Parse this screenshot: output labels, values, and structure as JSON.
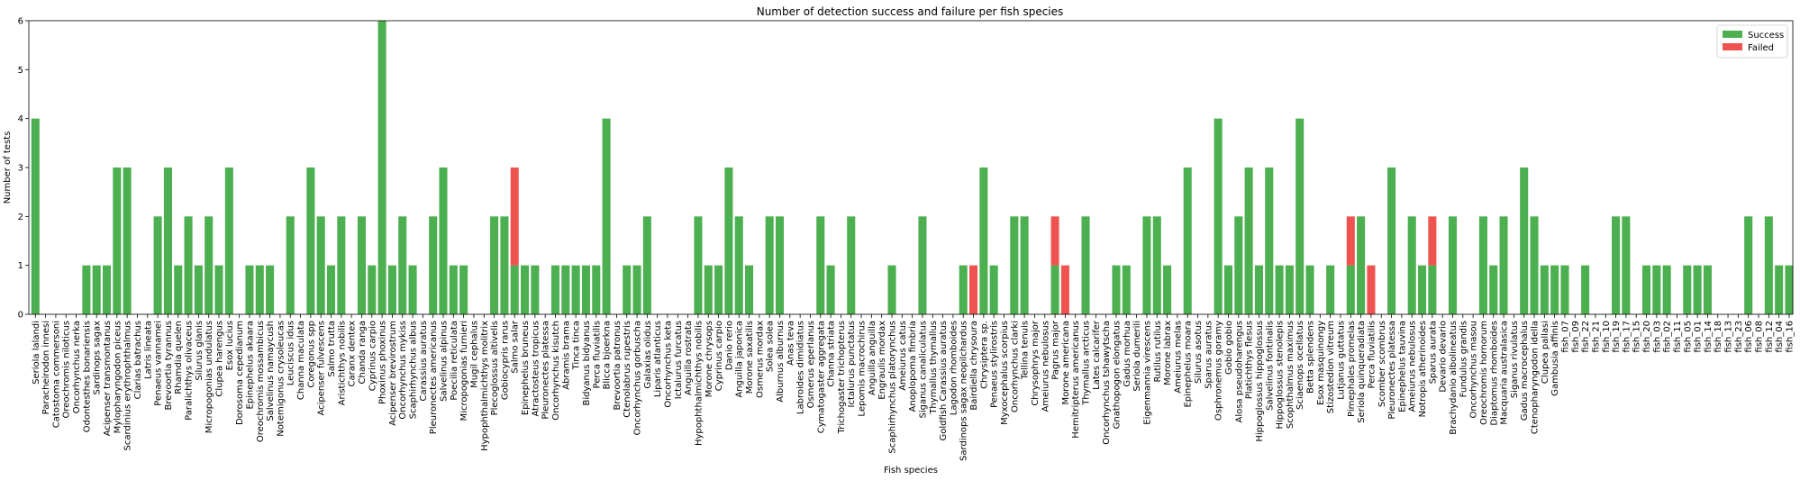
{
  "chart_data": {
    "type": "bar",
    "stacked": true,
    "title": "Number of detection success and failure per fish species",
    "xlabel": "Fish species",
    "ylabel": "Number of tests",
    "ylim": [
      0,
      6
    ],
    "yticks": [
      0,
      1,
      2,
      3,
      4,
      5,
      6
    ],
    "legend_position": "top-right",
    "categories": [
      "Seriola lalandi",
      "Paracheirodon innesi",
      "Catostoma commersoni",
      "Oreochromis niloticus",
      "Oncorhynchus nerka",
      "Odontesthes bonariensis",
      "Sardinops sagax",
      "Acipenser transmontanus",
      "Mylopharyngodon piceus",
      "Scardinius erythrophthalmus",
      "Clarias batrachus",
      "Latris lineata",
      "Penaeus vannamei",
      "Brevoortia tyrannus",
      "Rhamdia quelen",
      "Paralichthys olivaceus",
      "Silurus glanis",
      "Micropogonias undulatus",
      "Clupea harengus",
      "Esox lucius",
      "Dorosoma cepedianum",
      "Epinephelus akaara",
      "Oreochromis mossambicus",
      "Salvelinus namaycush",
      "Notemigonus crysoleucas",
      "Leuciscus idus",
      "Channa maculata",
      "Coregonus spp",
      "Acipenser fulvescens",
      "Salmo trutta",
      "Aristichthys nobilis",
      "Caranx dentex",
      "Chanda ranga",
      "Cyprinus carpio",
      "Phoxinus phoxinus",
      "Acipenser brevirostrum",
      "Oncorhynchus mykiss",
      "Scaphirhynchus albus",
      "Carassius auratus",
      "Pleuronectes americanus",
      "Salvelinus alpinus",
      "Poecilia reticulata",
      "Micropogonias furnieri",
      "Mugil cephalus",
      "Hypophthalmichthys molitrix",
      "Plecoglossus altivelis",
      "Gobiocypris rarus",
      "Salmo salar",
      "Epinephelus bruneus",
      "Atractosteus tropicus",
      "Pleuronectes platessa",
      "Oncorhynchus kisutch",
      "Abramis brama",
      "Tinca tinca",
      "Bidyanus bidyanus",
      "Perca fluviatilis",
      "Blicca bjoerkna",
      "Brevoortia patronus",
      "Ctenolabrus rupestris",
      "Oncorhynchus gorbuscha",
      "Galaxias olidus",
      "Liparis atlanticus",
      "Oncorhynchus keta",
      "Ictalurus furcatus",
      "Anguilla rostrata",
      "Hypophthalmichthys nobilis",
      "Morone chrysops",
      "Cyprinus carpio",
      "Danio rerio",
      "Anguilla japonica",
      "Morone saxatilis",
      "Osmerus mordax",
      "Solea solea",
      "Alburnus alburnus",
      "Anas teva",
      "Labroides dimidiatus",
      "Osmerus eperlanus",
      "Cymatogaster aggregata",
      "Channa striata",
      "Trichogaster trichopterus",
      "Ictalurus punctatus",
      "Lepomis macrochirus",
      "Anguilla anguilla",
      "Engraulis mordax",
      "Scaphirhynchus platorynchus",
      "Ameiurus catus",
      "Anoplopoma fimbria",
      "Siganus canaliculatus",
      "Thymallus thymallus",
      "Goldfish Carassius auratus",
      "Lagodon rhomboides",
      "Sardinops sagax neopilchardus",
      "Bairdiella chrysoura",
      "Chrysiptera sp.",
      "Penaeus stylirostris",
      "Myxocephalus scorpius",
      "Oncorhynchus clarki",
      "Tellina tenuis",
      "Chrysophrys major",
      "Ameiurus nebulosus",
      "Pagrus major",
      "Morone americana",
      "Hemitripterus americanus",
      "Thymallus arcticus",
      "Lates calcarifer",
      "Oncorhynchus tshawytscha",
      "Gnathopogon elongatus",
      "Gadus morhua",
      "Seriola dumerili",
      "Eigenmannia virescens",
      "Rutilus rutilus",
      "Morone labrax",
      "Ameiurus melas",
      "Epinephelus moara",
      "Silurus asotus",
      "Sparus auratus",
      "Osphronemus goramy",
      "Gobio gobio",
      "Alosa pseudoharengus",
      "Platichthys flesus",
      "Hippoglossus hippoglossus",
      "Salvelinus fontinalis",
      "Hippoglossus stenolepis",
      "Scophthalmus maximus",
      "Sciaenops ocellatus",
      "Betta splendens",
      "Esox masquinongy",
      "Stizostedion vitreum",
      "Lutjanus guttatus",
      "Pimephales promelas",
      "Seriola quinqueradiata",
      "Perca fluviatilis",
      "Scomber scombrus",
      "Pleuronectes platessa",
      "Epinephelus tauvina",
      "Ameiurus nebulosus",
      "Notropis atherinoides",
      "Sparus aurata",
      "Devario devario",
      "Brachydanio albolineatus",
      "Fundulus grandis",
      "Oncorhynchus masou",
      "Oreochromis hornorum",
      "Diaptomus rhomboides",
      "Macquaria australasica",
      "Siganus rivulatus",
      "Gadus macrocephalus",
      "Ctenopharyngodon idella",
      "Clupea pallasi",
      "Gambusia affinis",
      "fish_07",
      "fish_09",
      "fish_22",
      "fish_21",
      "fish_10",
      "fish_19",
      "fish_17",
      "fish_15",
      "fish_20",
      "fish_03",
      "fish_02",
      "fish_11",
      "fish_05",
      "fish_01",
      "fish_14",
      "fish_18",
      "fish_13",
      "fish_23",
      "fish_06",
      "fish_08",
      "fish_12",
      "fish_04",
      "fish_16"
    ],
    "series": [
      {
        "name": "Success",
        "color": "#4caf50",
        "values": [
          4,
          0,
          0,
          0,
          0,
          1,
          1,
          1,
          3,
          3,
          0,
          0,
          2,
          3,
          1,
          2,
          1,
          2,
          1,
          3,
          0,
          1,
          1,
          1,
          0,
          2,
          0,
          3,
          2,
          1,
          2,
          0,
          2,
          1,
          6,
          1,
          2,
          1,
          0,
          2,
          3,
          1,
          1,
          0,
          0,
          2,
          2,
          1,
          1,
          1,
          0,
          1,
          1,
          1,
          1,
          1,
          4,
          0,
          1,
          1,
          2,
          0,
          0,
          0,
          0,
          2,
          1,
          1,
          3,
          2,
          1,
          0,
          2,
          2,
          0,
          0,
          0,
          2,
          1,
          0,
          2,
          0,
          0,
          0,
          1,
          0,
          0,
          2,
          0,
          0,
          0,
          1,
          0,
          3,
          1,
          0,
          2,
          2,
          0,
          0,
          1,
          0,
          0,
          2,
          0,
          0,
          1,
          1,
          0,
          2,
          2,
          1,
          0,
          3,
          0,
          0,
          4,
          1,
          2,
          3,
          1,
          3,
          1,
          1,
          4,
          1,
          0,
          1,
          0,
          1,
          2,
          0,
          0,
          3,
          0,
          2,
          1,
          1,
          0,
          2,
          0,
          0,
          2,
          1,
          2,
          0,
          3,
          2,
          1,
          1,
          1,
          0,
          1,
          0,
          0,
          2,
          2,
          0,
          1,
          1,
          1,
          0,
          1,
          1,
          1,
          0,
          0,
          0,
          2,
          0,
          2,
          1,
          1
        ]
      },
      {
        "name": "Failed",
        "color": "#ef5350",
        "values": [
          0,
          0,
          0,
          0,
          0,
          0,
          0,
          0,
          0,
          0,
          0,
          0,
          0,
          0,
          0,
          0,
          0,
          0,
          0,
          0,
          0,
          0,
          0,
          0,
          0,
          0,
          0,
          0,
          0,
          0,
          0,
          0,
          0,
          0,
          0,
          0,
          0,
          0,
          0,
          0,
          0,
          0,
          0,
          0,
          0,
          0,
          0,
          2,
          0,
          0,
          0,
          0,
          0,
          0,
          0,
          0,
          0,
          0,
          0,
          0,
          0,
          0,
          0,
          0,
          0,
          0,
          0,
          0,
          0,
          0,
          0,
          0,
          0,
          0,
          0,
          0,
          0,
          0,
          0,
          0,
          0,
          0,
          0,
          0,
          0,
          0,
          0,
          0,
          0,
          0,
          0,
          0,
          1,
          0,
          0,
          0,
          0,
          0,
          0,
          0,
          1,
          1,
          0,
          0,
          0,
          0,
          0,
          0,
          0,
          0,
          0,
          0,
          0,
          0,
          0,
          0,
          0,
          0,
          0,
          0,
          0,
          0,
          0,
          0,
          0,
          0,
          0,
          0,
          0,
          1,
          0,
          1,
          0,
          0,
          0,
          0,
          0,
          1,
          0,
          0,
          0,
          0,
          0,
          0,
          0,
          0,
          0,
          0,
          0,
          0,
          0,
          0,
          0,
          0,
          0,
          0,
          0,
          0,
          0,
          0,
          0,
          0,
          0,
          0,
          0,
          0,
          0,
          0,
          0,
          0,
          0,
          0,
          0
        ]
      }
    ]
  }
}
